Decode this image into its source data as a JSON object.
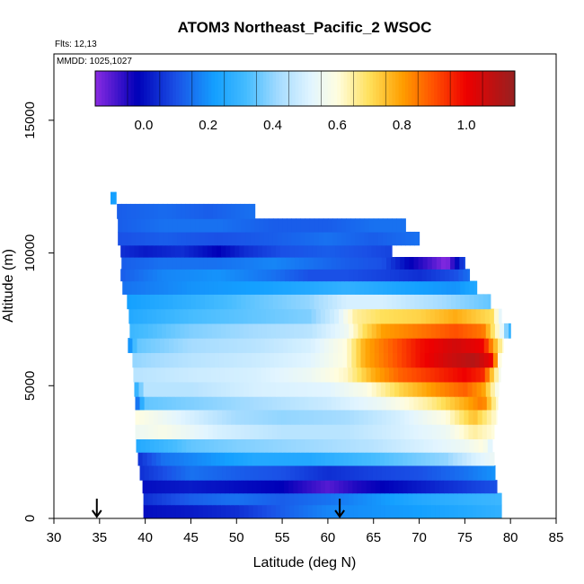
{
  "chart_data": {
    "type": "heatmap",
    "title": "ATOM3 Northeast_Pacific_2 WSOC",
    "annotations": [
      "Flts: 12,13",
      "MMDD: 1025,1027"
    ],
    "xlabel": "Latitude (deg N)",
    "ylabel": "Altitude (m)",
    "xlim": [
      30,
      85
    ],
    "ylim": [
      0,
      17500
    ],
    "x_ticks": [
      30,
      35,
      40,
      45,
      50,
      55,
      60,
      65,
      70,
      75,
      80,
      85
    ],
    "y_ticks": [
      0,
      5000,
      10000,
      15000
    ],
    "colorbar": {
      "range": [
        -0.15,
        1.15
      ],
      "tick_values": [
        0.0,
        0.2,
        0.4,
        0.6,
        0.8,
        1.0
      ],
      "tick_labels": [
        "0.0",
        "0.2",
        "0.4",
        "0.6",
        "0.8",
        "1.0"
      ],
      "stops": [
        {
          "v": -0.15,
          "c": "#8a2be2"
        },
        {
          "v": -0.02,
          "c": "#0000b8"
        },
        {
          "v": 0.1,
          "c": "#1a50e6"
        },
        {
          "v": 0.22,
          "c": "#14a0ff"
        },
        {
          "v": 0.32,
          "c": "#46bcff"
        },
        {
          "v": 0.42,
          "c": "#a6dcff"
        },
        {
          "v": 0.52,
          "c": "#e2f5ff"
        },
        {
          "v": 0.6,
          "c": "#fffde0"
        },
        {
          "v": 0.7,
          "c": "#ffe05a"
        },
        {
          "v": 0.8,
          "c": "#ff9f00"
        },
        {
          "v": 0.9,
          "c": "#ff5000"
        },
        {
          "v": 1.0,
          "c": "#ee0000"
        },
        {
          "v": 1.15,
          "c": "#962020"
        }
      ]
    },
    "arrows_latitude": [
      34.7,
      61.3
    ],
    "bands": [
      {
        "alt": [
          0,
          520
        ],
        "lat": [
          39.8,
          79
        ],
        "values": [
          [
            39.8,
            0.0
          ],
          [
            45,
            0.02
          ],
          [
            50,
            0.05
          ],
          [
            55,
            0.12
          ],
          [
            60,
            0.18
          ],
          [
            65,
            0.2
          ],
          [
            70,
            0.22
          ],
          [
            75,
            0.25
          ],
          [
            79,
            0.28
          ]
        ]
      },
      {
        "alt": [
          520,
          960
        ],
        "lat": [
          39.8,
          79
        ],
        "values": [
          [
            39.8,
            0.05
          ],
          [
            45,
            0.12
          ],
          [
            50,
            0.15
          ],
          [
            55,
            0.12
          ],
          [
            60,
            0.15
          ],
          [
            65,
            0.2
          ],
          [
            70,
            0.25
          ],
          [
            75,
            0.28
          ],
          [
            79,
            0.3
          ]
        ]
      },
      {
        "alt": [
          960,
          1450
        ],
        "lat": [
          39.7,
          78.5
        ],
        "values": [
          [
            39.7,
            0.0
          ],
          [
            45,
            0.02
          ],
          [
            50,
            0.0
          ],
          [
            55,
            -0.02
          ],
          [
            60,
            -0.1
          ],
          [
            63,
            -0.05
          ],
          [
            68,
            0.0
          ],
          [
            73,
            0.05
          ],
          [
            78.5,
            0.1
          ]
        ]
      },
      {
        "alt": [
          1450,
          2000
        ],
        "lat": [
          39.4,
          78.3
        ],
        "values": [
          [
            39.4,
            0.05
          ],
          [
            45,
            0.15
          ],
          [
            50,
            0.12
          ],
          [
            55,
            0.1
          ],
          [
            60,
            0.05
          ],
          [
            65,
            0.08
          ],
          [
            70,
            0.1
          ],
          [
            75,
            0.15
          ],
          [
            78.3,
            0.2
          ]
        ]
      },
      {
        "alt": [
          2000,
          2500
        ],
        "lat": [
          39.2,
          78.2
        ],
        "values": [
          [
            39.2,
            0.05
          ],
          [
            42,
            0.15
          ],
          [
            47,
            0.2
          ],
          [
            52,
            0.25
          ],
          [
            58,
            0.25
          ],
          [
            63,
            0.3
          ],
          [
            68,
            0.35
          ],
          [
            73,
            0.4
          ],
          [
            76,
            0.5
          ],
          [
            78.2,
            0.55
          ]
        ]
      },
      {
        "alt": [
          2500,
          3000
        ],
        "lat": [
          39.0,
          78.0
        ],
        "values": [
          [
            39,
            0.25
          ],
          [
            45,
            0.35
          ],
          [
            50,
            0.38
          ],
          [
            55,
            0.4
          ],
          [
            60,
            0.42
          ],
          [
            65,
            0.45
          ],
          [
            70,
            0.5
          ],
          [
            75,
            0.55
          ],
          [
            77,
            0.6
          ],
          [
            78,
            0.5
          ]
        ]
      },
      {
        "alt": [
          3000,
          3550
        ],
        "lat": [
          38.9,
          78.2
        ],
        "values": [
          [
            38.9,
            0.55
          ],
          [
            42,
            0.58
          ],
          [
            48,
            0.5
          ],
          [
            55,
            0.45
          ],
          [
            62,
            0.45
          ],
          [
            68,
            0.5
          ],
          [
            73,
            0.55
          ],
          [
            76,
            0.65
          ],
          [
            78.2,
            0.6
          ]
        ]
      },
      {
        "alt": [
          3550,
          4100
        ],
        "lat": [
          38.9,
          78.5
        ],
        "values": [
          [
            38.9,
            0.6
          ],
          [
            45,
            0.5
          ],
          [
            50,
            0.42
          ],
          [
            55,
            0.4
          ],
          [
            62,
            0.42
          ],
          [
            68,
            0.5
          ],
          [
            73,
            0.6
          ],
          [
            76,
            0.75
          ],
          [
            78.5,
            0.6
          ]
        ]
      },
      {
        "alt": [
          4100,
          4600
        ],
        "lat": [
          38.9,
          78.6
        ],
        "values": [
          [
            38.9,
            0.1
          ],
          [
            40,
            0.35
          ],
          [
            45,
            0.38
          ],
          [
            52,
            0.42
          ],
          [
            60,
            0.48
          ],
          [
            66,
            0.55
          ],
          [
            71,
            0.65
          ],
          [
            75,
            0.78
          ],
          [
            77,
            0.85
          ],
          [
            78.6,
            0.6
          ]
        ]
      },
      {
        "alt": [
          4600,
          5150
        ],
        "lat": [
          38.8,
          78.7
        ],
        "values": [
          [
            38.8,
            0.25
          ],
          [
            40,
            0.45
          ],
          [
            45,
            0.45
          ],
          [
            52,
            0.5
          ],
          [
            60,
            0.52
          ],
          [
            64,
            0.58
          ],
          [
            68,
            0.72
          ],
          [
            72,
            0.82
          ],
          [
            75,
            0.88
          ],
          [
            77,
            0.8
          ],
          [
            78.7,
            0.55
          ]
        ]
      },
      {
        "alt": [
          5150,
          5700
        ],
        "lat": [
          38.7,
          78.9
        ],
        "values": [
          [
            38.7,
            0.45
          ],
          [
            45,
            0.48
          ],
          [
            52,
            0.5
          ],
          [
            58,
            0.55
          ],
          [
            62,
            0.62
          ],
          [
            65,
            0.78
          ],
          [
            68,
            0.88
          ],
          [
            72,
            0.95
          ],
          [
            75,
            1.0
          ],
          [
            77,
            0.95
          ],
          [
            78.9,
            0.55
          ]
        ]
      },
      {
        "alt": [
          5700,
          6250
        ],
        "lat": [
          38.6,
          79.0
        ],
        "values": [
          [
            38.6,
            0.4
          ],
          [
            45,
            0.45
          ],
          [
            52,
            0.48
          ],
          [
            58,
            0.52
          ],
          [
            62,
            0.6
          ],
          [
            64,
            0.78
          ],
          [
            67,
            0.88
          ],
          [
            70,
            0.98
          ],
          [
            73,
            1.05
          ],
          [
            76,
            1.1
          ],
          [
            78,
            1.0
          ],
          [
            79,
            0.5
          ]
        ]
      },
      {
        "alt": [
          6250,
          6800
        ],
        "lat": [
          38.1,
          79.2
        ],
        "values": [
          [
            38.1,
            0.15
          ],
          [
            39,
            0.35
          ],
          [
            45,
            0.42
          ],
          [
            52,
            0.45
          ],
          [
            58,
            0.5
          ],
          [
            62,
            0.6
          ],
          [
            64,
            0.78
          ],
          [
            66,
            0.85
          ],
          [
            70,
            0.98
          ],
          [
            74,
            1.05
          ],
          [
            77,
            1.0
          ],
          [
            79.2,
            0.6
          ]
        ]
      },
      {
        "alt": [
          6800,
          7350
        ],
        "lat": [
          38.3,
          80.0
        ],
        "values": [
          [
            38.3,
            0.3
          ],
          [
            45,
            0.38
          ],
          [
            52,
            0.42
          ],
          [
            58,
            0.45
          ],
          [
            62,
            0.55
          ],
          [
            64,
            0.7
          ],
          [
            66,
            0.8
          ],
          [
            70,
            0.85
          ],
          [
            74,
            0.9
          ],
          [
            77,
            0.85
          ],
          [
            79,
            0.55
          ],
          [
            80,
            0.25
          ]
        ]
      },
      {
        "alt": [
          7350,
          7900
        ],
        "lat": [
          38.2,
          79.0
        ],
        "values": [
          [
            38.2,
            0.25
          ],
          [
            45,
            0.32
          ],
          [
            52,
            0.35
          ],
          [
            58,
            0.38
          ],
          [
            61,
            0.5
          ],
          [
            63,
            0.65
          ],
          [
            66,
            0.7
          ],
          [
            70,
            0.72
          ],
          [
            74,
            0.78
          ],
          [
            78,
            0.7
          ],
          [
            79,
            0.5
          ]
        ]
      },
      {
        "alt": [
          7900,
          8450
        ],
        "lat": [
          38.0,
          77.8
        ],
        "values": [
          [
            38,
            0.22
          ],
          [
            45,
            0.28
          ],
          [
            52,
            0.35
          ],
          [
            58,
            0.4
          ],
          [
            62,
            0.5
          ],
          [
            66,
            0.5
          ],
          [
            70,
            0.45
          ],
          [
            74,
            0.4
          ],
          [
            77.8,
            0.35
          ]
        ]
      },
      {
        "alt": [
          8450,
          8950
        ],
        "lat": [
          37.5,
          76.3
        ],
        "values": [
          [
            37.5,
            0.15
          ],
          [
            45,
            0.2
          ],
          [
            52,
            0.22
          ],
          [
            58,
            0.25
          ],
          [
            62,
            0.28
          ],
          [
            66,
            0.25
          ],
          [
            70,
            0.22
          ],
          [
            74,
            0.2
          ],
          [
            76.3,
            0.25
          ]
        ]
      },
      {
        "alt": [
          8950,
          9400
        ],
        "lat": [
          37.3,
          75.5
        ],
        "values": [
          [
            37.3,
            0.12
          ],
          [
            42,
            0.18
          ],
          [
            48,
            0.2
          ],
          [
            54,
            0.15
          ],
          [
            58,
            0.1
          ],
          [
            62,
            0.1
          ],
          [
            66,
            0.08
          ],
          [
            70,
            0.05
          ],
          [
            74,
            0.1
          ],
          [
            75.5,
            0.15
          ]
        ]
      },
      {
        "alt": [
          9400,
          9850
        ],
        "lat": [
          37.4,
          75.0
        ],
        "values": [
          [
            37.4,
            0.12
          ],
          [
            42,
            0.15
          ],
          [
            48,
            0.15
          ],
          [
            54,
            0.18
          ],
          [
            58,
            0.15
          ],
          [
            62,
            0.12
          ],
          [
            66,
            0.1
          ],
          [
            69,
            -0.02
          ],
          [
            71,
            -0.08
          ],
          [
            73,
            -0.15
          ],
          [
            75,
            0.1
          ]
        ]
      },
      {
        "alt": [
          9850,
          10300
        ],
        "lat": [
          37.3,
          67.0
        ],
        "values": [
          [
            37.3,
            0.05
          ],
          [
            40,
            0.02
          ],
          [
            44,
            0.05
          ],
          [
            48,
            -0.02
          ],
          [
            51,
            0.05
          ],
          [
            55,
            0.1
          ],
          [
            60,
            0.12
          ],
          [
            64,
            0.1
          ],
          [
            67,
            0.08
          ]
        ]
      },
      {
        "alt": [
          10300,
          10800
        ],
        "lat": [
          37.0,
          70.0
        ],
        "values": [
          [
            37,
            0.1
          ],
          [
            42,
            0.12
          ],
          [
            48,
            0.1
          ],
          [
            54,
            0.12
          ],
          [
            60,
            0.15
          ],
          [
            65,
            0.12
          ],
          [
            70,
            0.15
          ]
        ]
      },
      {
        "alt": [
          10800,
          11300
        ],
        "lat": [
          37.0,
          68.5
        ],
        "values": [
          [
            37,
            0.12
          ],
          [
            42,
            0.15
          ],
          [
            48,
            0.15
          ],
          [
            54,
            0.12
          ],
          [
            60,
            0.12
          ],
          [
            65,
            0.15
          ],
          [
            68.5,
            0.15
          ]
        ]
      },
      {
        "alt": [
          11300,
          11850
        ],
        "lat": [
          36.9,
          52.0
        ],
        "values": [
          [
            36.9,
            0.12
          ],
          [
            42,
            0.14
          ],
          [
            47,
            0.12
          ],
          [
            52,
            0.15
          ]
        ]
      },
      {
        "alt": [
          11850,
          12300
        ],
        "lat": [
          36.2,
          36.8
        ],
        "values": [
          [
            36.2,
            0.22
          ],
          [
            36.8,
            0.22
          ]
        ]
      }
    ]
  }
}
